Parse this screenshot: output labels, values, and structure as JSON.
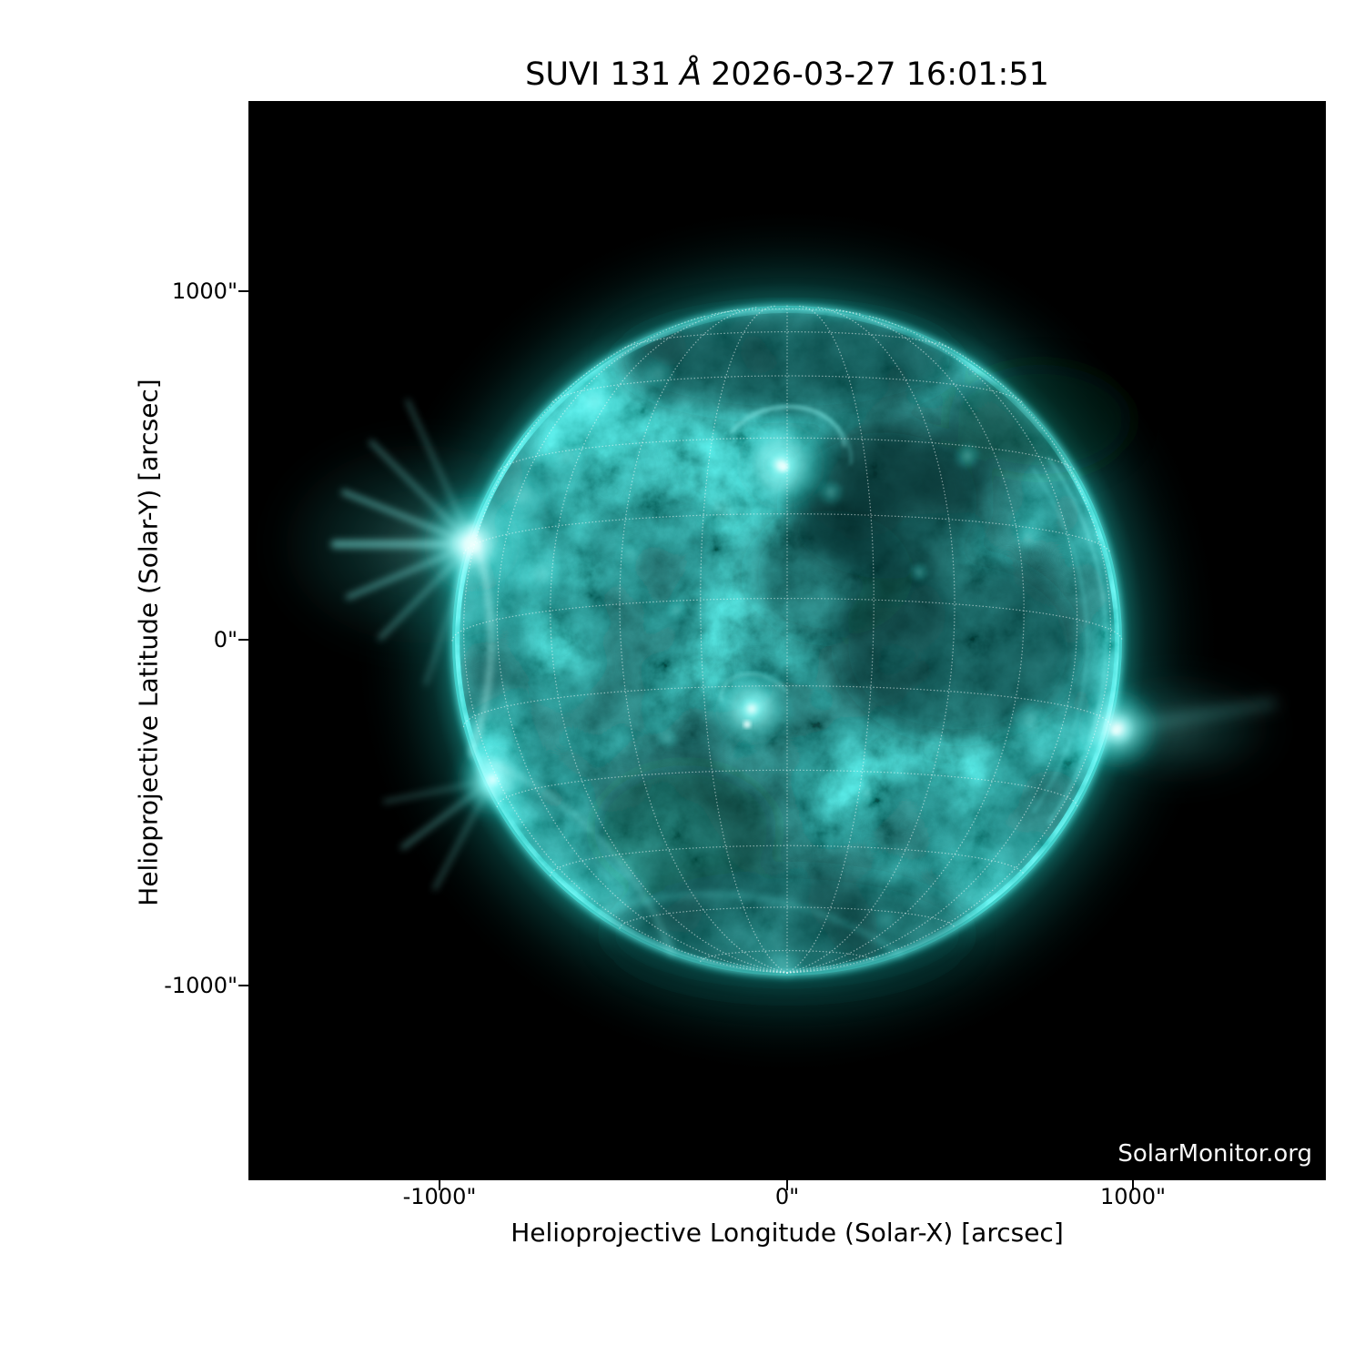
{
  "title": {
    "prefix": "SUVI 131",
    "angstrom": "Å",
    "datetime": "2026-03-27 16:01:51"
  },
  "axes": {
    "x": {
      "label": "Helioprojective Longitude (Solar-X) [arcsec]",
      "ticks": [
        "-1000\"",
        "0\"",
        "1000\""
      ]
    },
    "y": {
      "label": "Helioprojective Latitude (Solar-Y) [arcsec]",
      "ticks": [
        "1000\"",
        "0\"",
        "-1000\""
      ]
    }
  },
  "watermark": "SolarMonitor.org",
  "colors": {
    "page_background": "#ffffff",
    "plot_background": "#000000",
    "text": "#000000",
    "watermark_text": "#f8f8f8",
    "sun_bright_cyan": "#3fe8df",
    "sun_core_white": "#f2fffe",
    "sun_mid_teal": "#0e827c",
    "sun_dark_teal": "#05343130",
    "grid_overlay": "#ffffff"
  },
  "chart_data": {
    "type": "heatmap",
    "title": "SUVI 131 Å 2026-03-27 16:01:51",
    "xlabel": "Helioprojective Longitude (Solar-X) [arcsec]",
    "ylabel": "Helioprojective Latitude (Solar-Y) [arcsec]",
    "xlim": [
      -1550,
      1550
    ],
    "ylim": [
      -1550,
      1550
    ],
    "x_ticks_arcsec": [
      -1000,
      0,
      1000
    ],
    "y_ticks_arcsec": [
      1000,
      0,
      -1000
    ],
    "solar_disk_radius_arcsec": 960,
    "grid": "heliographic dotted grid overlay, 15 degree spacing",
    "colormap": "SUVI 131 teal/cyan on black",
    "instrument": "SUVI",
    "wavelength_angstrom": 131,
    "observation_time": "2026-03-27 16:01:51",
    "bright_regions_arcsec": [
      {
        "name": "east-limb flaring active region with radial spikes (brightest)",
        "x": -920,
        "y": 280
      },
      {
        "name": "north-central active region with coronal loops",
        "x": -30,
        "y": 500
      },
      {
        "name": "central active region",
        "x": -100,
        "y": -205
      },
      {
        "name": "west-limb active region with limb glow",
        "x": 950,
        "y": -250
      },
      {
        "name": "southeast-limb active region",
        "x": -850,
        "y": -400
      },
      {
        "name": "small active region mid-west disk",
        "x": -10,
        "y": -230
      }
    ],
    "legend": "none"
  }
}
